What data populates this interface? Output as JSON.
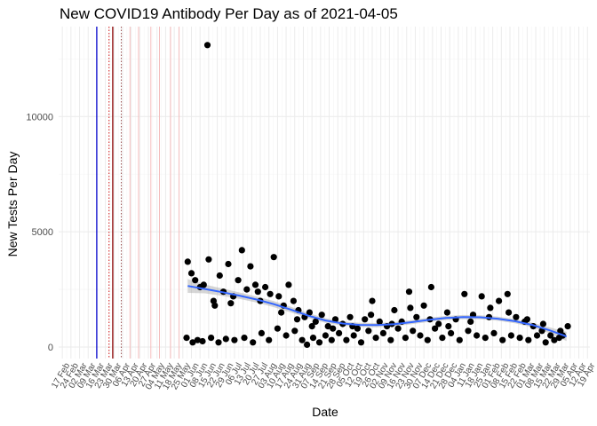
{
  "chart_data": {
    "type": "scatter",
    "title": "New COVID19 Antibody Per Day as of 2021-04-05",
    "xlabel": "Date",
    "ylabel": "New Tests Per Day",
    "xlim": [
      "2020-02-14",
      "2021-04-21"
    ],
    "ylim": [
      -500,
      13900
    ],
    "yticks": [
      0,
      5000,
      10000
    ],
    "grid": true,
    "xtick_labels": [
      "17 Feb",
      "24 Feb",
      "02 Mar",
      "09 Mar",
      "16 Mar",
      "23 Mar",
      "30 Mar",
      "06 Apr",
      "13 Apr",
      "20 Apr",
      "27 Apr",
      "04 May",
      "11 May",
      "18 May",
      "25 May",
      "01 Jun",
      "08 Jun",
      "15 Jun",
      "22 Jun",
      "29 Jun",
      "06 Jul",
      "13 Jul",
      "20 Jul",
      "27 Jul",
      "03 Aug",
      "10 Aug",
      "17 Aug",
      "24 Aug",
      "31 Aug",
      "07 Sep",
      "14 Sep",
      "21 Sep",
      "28 Sep",
      "05 Oct",
      "12 Oct",
      "19 Oct",
      "26 Oct",
      "02 Nov",
      "09 Nov",
      "16 Nov",
      "23 Nov",
      "30 Nov",
      "07 Dec",
      "14 Dec",
      "21 Dec",
      "28 Dec",
      "04 Jan",
      "11 Jan",
      "18 Jan",
      "25 Jan",
      "01 Feb",
      "08 Feb",
      "15 Feb",
      "22 Feb",
      "01 Mar",
      "08 Mar",
      "15 Mar",
      "22 Mar",
      "29 Mar",
      "05 Apr",
      "12 Apr",
      "19 Apr"
    ],
    "vertical_lines": [
      {
        "date": "2020-03-16",
        "color": "#0000cc",
        "style": "solid"
      },
      {
        "date": "2020-03-26",
        "color": "#cc0000",
        "style": "dotted"
      },
      {
        "date": "2020-03-29",
        "color": "#8b0000",
        "style": "solid"
      },
      {
        "date": "2020-04-05",
        "color": "#8b3a3a",
        "style": "dotted"
      },
      {
        "date": "2020-04-12",
        "color": "#f4b6b6",
        "style": "solid"
      },
      {
        "date": "2020-04-19",
        "color": "#f4b6b6",
        "style": "solid"
      },
      {
        "date": "2020-04-29",
        "color": "#f4b6b6",
        "style": "solid"
      },
      {
        "date": "2020-05-06",
        "color": "#f4b6b6",
        "style": "solid"
      },
      {
        "date": "2020-05-15",
        "color": "#f4b6b6",
        "style": "solid"
      },
      {
        "date": "2020-05-22",
        "color": "#f4b6b6",
        "style": "solid"
      }
    ],
    "smooth": {
      "color": "#3366ff",
      "x": [
        "2020-05-29",
        "2020-06-12",
        "2020-06-26",
        "2020-07-10",
        "2020-07-24",
        "2020-08-07",
        "2020-08-21",
        "2020-09-04",
        "2020-09-18",
        "2020-10-02",
        "2020-10-16",
        "2020-10-30",
        "2020-11-13",
        "2020-11-27",
        "2020-12-11",
        "2020-12-25",
        "2021-01-08",
        "2021-01-22",
        "2021-02-05",
        "2021-02-19",
        "2021-03-05",
        "2021-03-19",
        "2021-04-02"
      ],
      "y": [
        2650,
        2520,
        2380,
        2230,
        2060,
        1860,
        1620,
        1360,
        1150,
        1020,
        960,
        950,
        990,
        1080,
        1180,
        1260,
        1300,
        1290,
        1230,
        1120,
        960,
        730,
        460
      ],
      "band_lo": [
        2350,
        2330,
        2220,
        2090,
        1930,
        1730,
        1500,
        1250,
        1050,
        930,
        870,
        860,
        900,
        990,
        1090,
        1170,
        1210,
        1200,
        1140,
        1030,
        860,
        600,
        260
      ],
      "band_hi": [
        2950,
        2710,
        2540,
        2370,
        2190,
        1990,
        1740,
        1470,
        1250,
        1110,
        1050,
        1040,
        1080,
        1170,
        1270,
        1350,
        1390,
        1380,
        1320,
        1210,
        1060,
        860,
        660
      ]
    },
    "points": [
      {
        "x": "2020-06-14",
        "y": 13100
      },
      {
        "x": "2020-05-29",
        "y": 3700
      },
      {
        "x": "2020-06-01",
        "y": 3200
      },
      {
        "x": "2020-06-04",
        "y": 2900
      },
      {
        "x": "2020-06-08",
        "y": 2600
      },
      {
        "x": "2020-06-11",
        "y": 2700
      },
      {
        "x": "2020-06-15",
        "y": 3800
      },
      {
        "x": "2020-06-19",
        "y": 2000
      },
      {
        "x": "2020-06-24",
        "y": 3100
      },
      {
        "x": "2020-06-27",
        "y": 2400
      },
      {
        "x": "2020-07-01",
        "y": 3600
      },
      {
        "x": "2020-07-05",
        "y": 2200
      },
      {
        "x": "2020-07-09",
        "y": 2900
      },
      {
        "x": "2020-07-12",
        "y": 4200
      },
      {
        "x": "2020-07-16",
        "y": 2500
      },
      {
        "x": "2020-07-19",
        "y": 3500
      },
      {
        "x": "2020-07-23",
        "y": 2700
      },
      {
        "x": "2020-07-27",
        "y": 2000
      },
      {
        "x": "2020-07-31",
        "y": 2600
      },
      {
        "x": "2020-08-04",
        "y": 2300
      },
      {
        "x": "2020-08-07",
        "y": 3900
      },
      {
        "x": "2020-08-11",
        "y": 2200
      },
      {
        "x": "2020-08-15",
        "y": 1800
      },
      {
        "x": "2020-08-19",
        "y": 2700
      },
      {
        "x": "2020-08-23",
        "y": 2000
      },
      {
        "x": "2020-08-27",
        "y": 1600
      },
      {
        "x": "2020-09-01",
        "y": 1300
      },
      {
        "x": "2020-09-05",
        "y": 1500
      },
      {
        "x": "2020-09-10",
        "y": 1100
      },
      {
        "x": "2020-09-15",
        "y": 1400
      },
      {
        "x": "2020-09-20",
        "y": 900
      },
      {
        "x": "2020-09-26",
        "y": 1200
      },
      {
        "x": "2020-10-02",
        "y": 1000
      },
      {
        "x": "2020-10-08",
        "y": 1300
      },
      {
        "x": "2020-10-14",
        "y": 800
      },
      {
        "x": "2020-10-20",
        "y": 1200
      },
      {
        "x": "2020-10-26",
        "y": 2000
      },
      {
        "x": "2020-11-01",
        "y": 1100
      },
      {
        "x": "2020-11-07",
        "y": 900
      },
      {
        "x": "2020-11-13",
        "y": 1600
      },
      {
        "x": "2020-11-19",
        "y": 1100
      },
      {
        "x": "2020-11-25",
        "y": 2400
      },
      {
        "x": "2020-12-01",
        "y": 1300
      },
      {
        "x": "2020-12-07",
        "y": 1800
      },
      {
        "x": "2020-12-13",
        "y": 2600
      },
      {
        "x": "2020-12-19",
        "y": 1000
      },
      {
        "x": "2020-12-26",
        "y": 1500
      },
      {
        "x": "2021-01-02",
        "y": 1200
      },
      {
        "x": "2021-01-09",
        "y": 2300
      },
      {
        "x": "2021-01-16",
        "y": 1400
      },
      {
        "x": "2021-01-23",
        "y": 2200
      },
      {
        "x": "2021-01-30",
        "y": 1700
      },
      {
        "x": "2021-02-06",
        "y": 2000
      },
      {
        "x": "2021-02-13",
        "y": 2300
      },
      {
        "x": "2021-02-20",
        "y": 1300
      },
      {
        "x": "2021-02-27",
        "y": 1100
      },
      {
        "x": "2021-03-06",
        "y": 900
      },
      {
        "x": "2021-03-13",
        "y": 700
      },
      {
        "x": "2021-03-20",
        "y": 500
      },
      {
        "x": "2021-03-27",
        "y": 400
      },
      {
        "x": "2021-04-03",
        "y": 900
      },
      {
        "x": "2020-05-28",
        "y": 400
      },
      {
        "x": "2020-06-02",
        "y": 200
      },
      {
        "x": "2020-06-06",
        "y": 300
      },
      {
        "x": "2020-06-10",
        "y": 250
      },
      {
        "x": "2020-06-17",
        "y": 400
      },
      {
        "x": "2020-06-23",
        "y": 200
      },
      {
        "x": "2020-06-29",
        "y": 350
      },
      {
        "x": "2020-07-06",
        "y": 300
      },
      {
        "x": "2020-07-14",
        "y": 400
      },
      {
        "x": "2020-07-21",
        "y": 200
      },
      {
        "x": "2020-07-28",
        "y": 600
      },
      {
        "x": "2020-08-03",
        "y": 300
      },
      {
        "x": "2020-08-10",
        "y": 800
      },
      {
        "x": "2020-08-17",
        "y": 500
      },
      {
        "x": "2020-08-24",
        "y": 700
      },
      {
        "x": "2020-08-30",
        "y": 300
      },
      {
        "x": "2020-09-03",
        "y": 100
      },
      {
        "x": "2020-09-08",
        "y": 400
      },
      {
        "x": "2020-09-13",
        "y": 200
      },
      {
        "x": "2020-09-18",
        "y": 500
      },
      {
        "x": "2020-09-23",
        "y": 300
      },
      {
        "x": "2020-09-29",
        "y": 600
      },
      {
        "x": "2020-10-05",
        "y": 300
      },
      {
        "x": "2020-10-11",
        "y": 500
      },
      {
        "x": "2020-10-17",
        "y": 200
      },
      {
        "x": "2020-10-23",
        "y": 700
      },
      {
        "x": "2020-10-29",
        "y": 400
      },
      {
        "x": "2020-11-04",
        "y": 600
      },
      {
        "x": "2020-11-10",
        "y": 300
      },
      {
        "x": "2020-11-16",
        "y": 800
      },
      {
        "x": "2020-11-22",
        "y": 400
      },
      {
        "x": "2020-11-28",
        "y": 700
      },
      {
        "x": "2020-12-04",
        "y": 500
      },
      {
        "x": "2020-12-10",
        "y": 300
      },
      {
        "x": "2020-12-16",
        "y": 800
      },
      {
        "x": "2020-12-22",
        "y": 400
      },
      {
        "x": "2020-12-29",
        "y": 600
      },
      {
        "x": "2021-01-05",
        "y": 300
      },
      {
        "x": "2021-01-12",
        "y": 700
      },
      {
        "x": "2021-01-19",
        "y": 500
      },
      {
        "x": "2021-01-26",
        "y": 400
      },
      {
        "x": "2021-02-02",
        "y": 600
      },
      {
        "x": "2021-02-09",
        "y": 300
      },
      {
        "x": "2021-02-16",
        "y": 500
      },
      {
        "x": "2021-02-23",
        "y": 400
      },
      {
        "x": "2021-03-02",
        "y": 300
      },
      {
        "x": "2021-03-09",
        "y": 500
      },
      {
        "x": "2021-03-16",
        "y": 200
      },
      {
        "x": "2021-03-23",
        "y": 300
      },
      {
        "x": "2021-03-30",
        "y": 500
      },
      {
        "x": "2020-06-20",
        "y": 1800
      },
      {
        "x": "2020-07-03",
        "y": 1900
      },
      {
        "x": "2020-07-25",
        "y": 2400
      },
      {
        "x": "2020-08-13",
        "y": 1500
      },
      {
        "x": "2020-08-26",
        "y": 1200
      },
      {
        "x": "2020-09-07",
        "y": 900
      },
      {
        "x": "2020-09-24",
        "y": 800
      },
      {
        "x": "2020-10-10",
        "y": 900
      },
      {
        "x": "2020-10-25",
        "y": 1400
      },
      {
        "x": "2020-11-11",
        "y": 1000
      },
      {
        "x": "2020-11-26",
        "y": 1700
      },
      {
        "x": "2020-12-12",
        "y": 1200
      },
      {
        "x": "2020-12-27",
        "y": 900
      },
      {
        "x": "2021-01-14",
        "y": 1100
      },
      {
        "x": "2021-01-29",
        "y": 1300
      },
      {
        "x": "2021-02-14",
        "y": 1500
      },
      {
        "x": "2021-03-01",
        "y": 1200
      },
      {
        "x": "2021-03-14",
        "y": 1000
      },
      {
        "x": "2021-03-28",
        "y": 700
      }
    ]
  }
}
